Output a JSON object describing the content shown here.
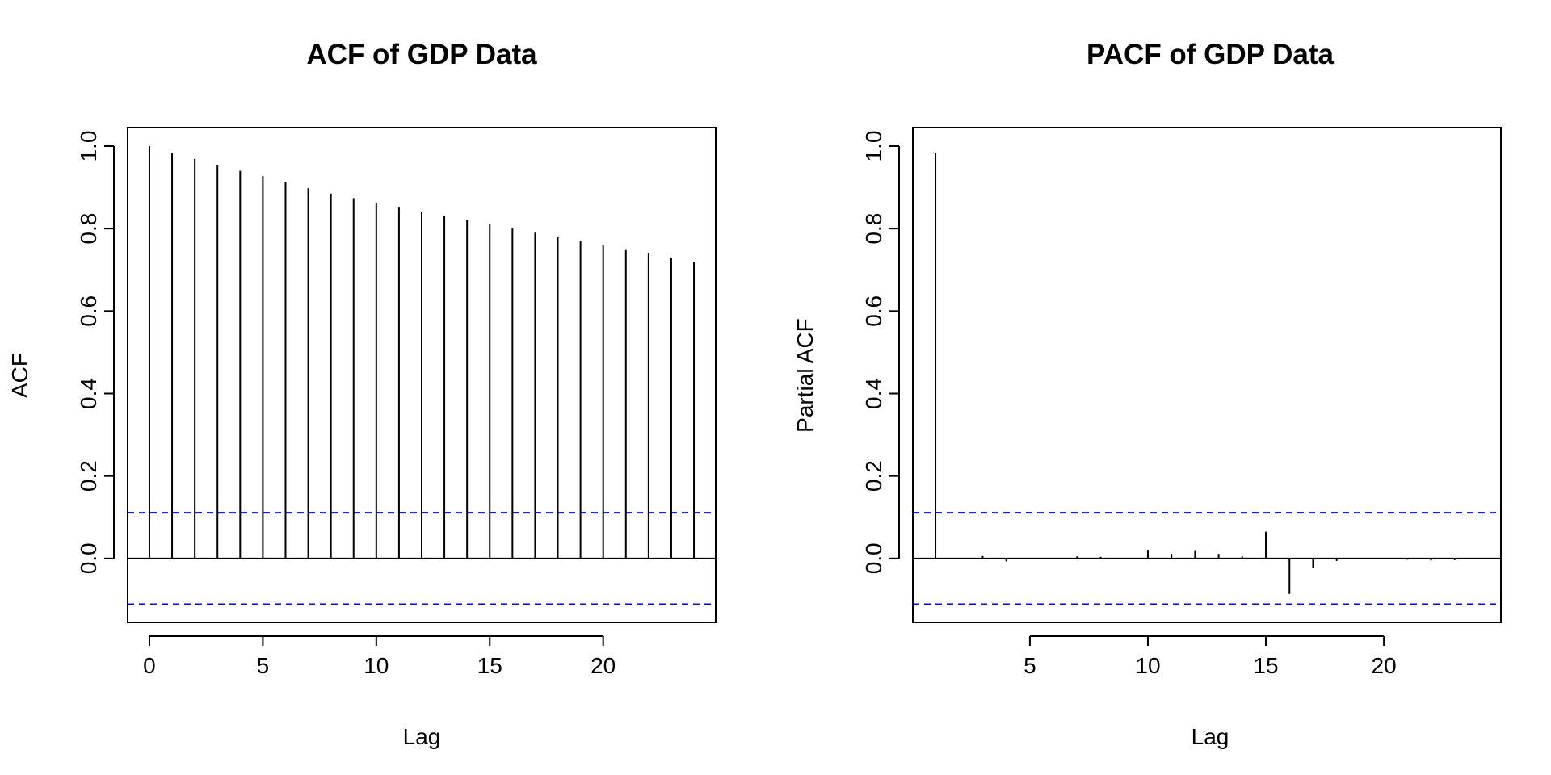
{
  "chart_data": [
    {
      "type": "bar",
      "title": "ACF of GDP Data",
      "xlabel": "Lag",
      "ylabel": "ACF",
      "x": [
        0,
        1,
        2,
        3,
        4,
        5,
        6,
        7,
        8,
        9,
        10,
        11,
        12,
        13,
        14,
        15,
        16,
        17,
        18,
        19,
        20,
        21,
        22,
        23,
        24
      ],
      "values": [
        1.0,
        0.984,
        0.969,
        0.954,
        0.94,
        0.927,
        0.913,
        0.898,
        0.885,
        0.874,
        0.862,
        0.851,
        0.84,
        0.83,
        0.82,
        0.812,
        0.8,
        0.79,
        0.78,
        0.77,
        0.76,
        0.748,
        0.74,
        0.729,
        0.718
      ],
      "xlim": [
        -0.96,
        24.96
      ],
      "ylim": [
        -0.155,
        1.045
      ],
      "xticks": [
        0,
        5,
        10,
        15,
        20
      ],
      "yticks": [
        0.0,
        0.2,
        0.4,
        0.6,
        0.8,
        1.0
      ],
      "ci": 0.111,
      "ci_color": "#0000ff",
      "grid": false,
      "bar_color": "#000000"
    },
    {
      "type": "bar",
      "title": "PACF of GDP Data",
      "xlabel": "Lag",
      "ylabel": "Partial ACF",
      "x": [
        1,
        2,
        3,
        4,
        5,
        6,
        7,
        8,
        9,
        10,
        11,
        12,
        13,
        14,
        15,
        16,
        17,
        18,
        19,
        20,
        21,
        22,
        23,
        24
      ],
      "values": [
        0.984,
        0.001,
        0.006,
        -0.007,
        -0.001,
        0.001,
        0.005,
        0.004,
        0.001,
        0.021,
        0.011,
        0.02,
        0.011,
        0.005,
        0.065,
        -0.086,
        -0.022,
        -0.006,
        0.0,
        0.0,
        -0.003,
        -0.005,
        -0.004,
        0.0
      ],
      "xlim": [
        0.04,
        24.96
      ],
      "ylim": [
        -0.155,
        1.045
      ],
      "xticks": [
        5,
        10,
        15,
        20
      ],
      "yticks": [
        0.0,
        0.2,
        0.4,
        0.6,
        0.8,
        1.0
      ],
      "ci": 0.111,
      "ci_color": "#0000ff",
      "grid": false,
      "bar_color": "#000000"
    }
  ]
}
